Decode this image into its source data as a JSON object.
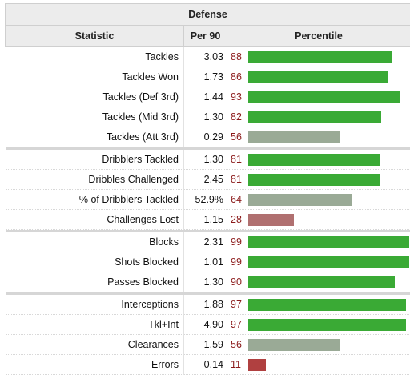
{
  "table": {
    "group_title": "Defense",
    "headers": {
      "statistic": "Statistic",
      "per90": "Per 90",
      "percentile": "Percentile"
    },
    "colors": {
      "high": "#3aaa35",
      "mid": "#9aaa96",
      "low": "#b07070",
      "very_low": "#b04040"
    },
    "groups": [
      [
        {
          "stat": "Tackles",
          "per90": "3.03",
          "pct": "88"
        },
        {
          "stat": "Tackles Won",
          "per90": "1.73",
          "pct": "86"
        },
        {
          "stat": "Tackles (Def 3rd)",
          "per90": "1.44",
          "pct": "93"
        },
        {
          "stat": "Tackles (Mid 3rd)",
          "per90": "1.30",
          "pct": "82"
        },
        {
          "stat": "Tackles (Att 3rd)",
          "per90": "0.29",
          "pct": "56"
        }
      ],
      [
        {
          "stat": "Dribblers Tackled",
          "per90": "1.30",
          "pct": "81"
        },
        {
          "stat": "Dribbles Challenged",
          "per90": "2.45",
          "pct": "81"
        },
        {
          "stat": "% of Dribblers Tackled",
          "per90": "52.9%",
          "pct": "64"
        },
        {
          "stat": "Challenges Lost",
          "per90": "1.15",
          "pct": "28"
        }
      ],
      [
        {
          "stat": "Blocks",
          "per90": "2.31",
          "pct": "99"
        },
        {
          "stat": "Shots Blocked",
          "per90": "1.01",
          "pct": "99"
        },
        {
          "stat": "Passes Blocked",
          "per90": "1.30",
          "pct": "90"
        }
      ],
      [
        {
          "stat": "Interceptions",
          "per90": "1.88",
          "pct": "97"
        },
        {
          "stat": "Tkl+Int",
          "per90": "4.90",
          "pct": "97"
        },
        {
          "stat": "Clearances",
          "per90": "1.59",
          "pct": "56"
        },
        {
          "stat": "Errors",
          "per90": "0.14",
          "pct": "11"
        }
      ]
    ]
  }
}
